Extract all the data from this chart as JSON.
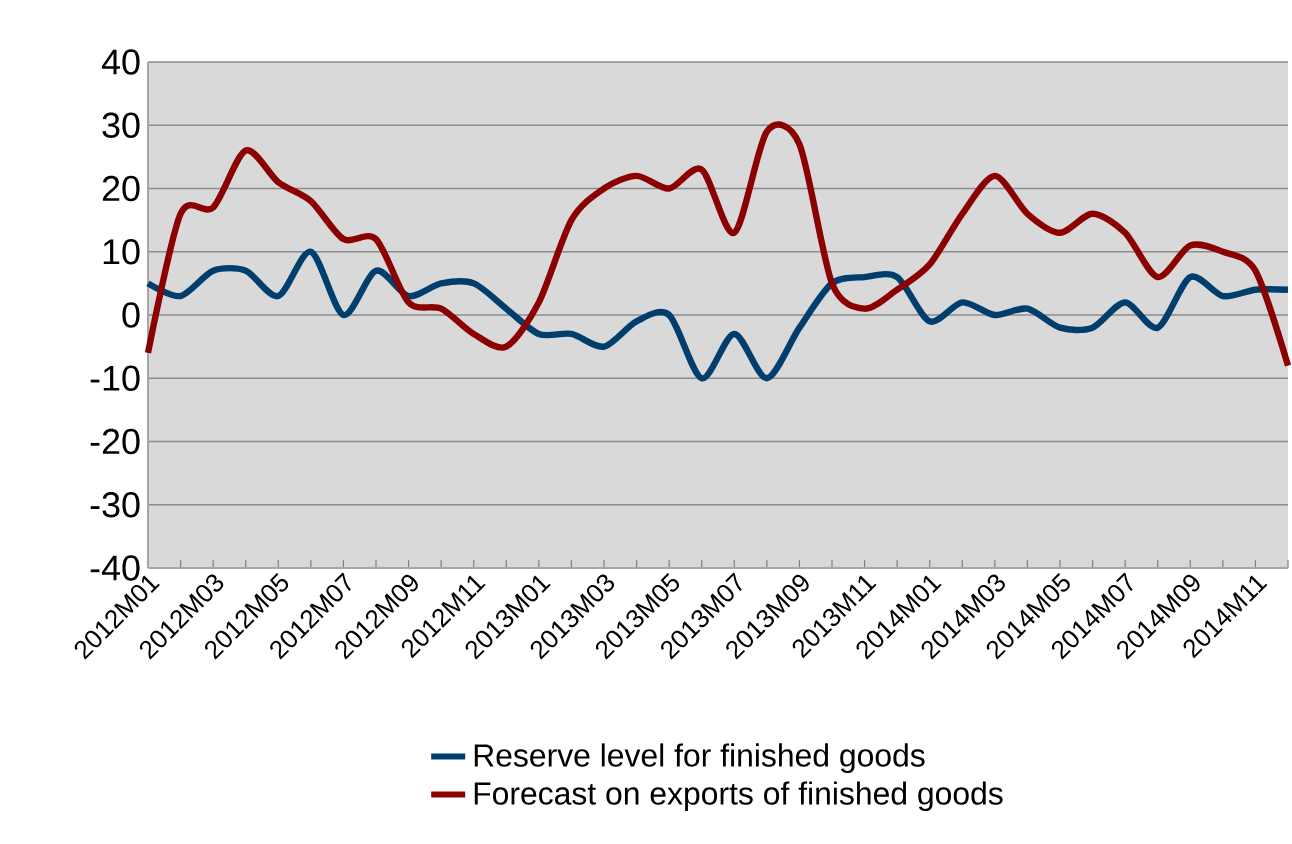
{
  "chart_data": {
    "type": "line",
    "categories": [
      "2012M01",
      null,
      "2012M03",
      null,
      "2012M05",
      null,
      "2012M07",
      null,
      "2012M09",
      null,
      "2012M11",
      null,
      "2013M01",
      null,
      "2013M03",
      null,
      "2013M05",
      null,
      "2013M07",
      null,
      "2013M09",
      null,
      "2013M11",
      null,
      "2014M01",
      null,
      "2014M03",
      null,
      "2014M05",
      null,
      "2014M07",
      null,
      "2014M09",
      null,
      "2014M11",
      null
    ],
    "series": [
      {
        "name": "Reserve level for finished goods",
        "color": "#003e6e",
        "values": [
          5,
          3,
          7,
          7,
          3,
          10,
          0,
          7,
          3,
          5,
          5,
          1,
          -3,
          -3,
          -5,
          -1,
          0,
          -10,
          -3,
          -10,
          -2,
          5,
          6,
          6,
          -1,
          2,
          0,
          1,
          -2,
          -2,
          2,
          -2,
          6,
          3,
          4,
          4
        ]
      },
      {
        "name": "Forecast on exports of finished goods",
        "color": "#8b0000",
        "values": [
          -6,
          16,
          17,
          26,
          21,
          18,
          12,
          12,
          2,
          1,
          -3,
          -5,
          2,
          15,
          20,
          22,
          20,
          23,
          13,
          29,
          27,
          5,
          1,
          4,
          8,
          16,
          22,
          16,
          13,
          16,
          13,
          6,
          11,
          10,
          7,
          -8
        ]
      }
    ],
    "ylim": [
      -40,
      40
    ],
    "yticks": [
      -40,
      -30,
      -20,
      -10,
      0,
      10,
      20,
      30,
      40
    ],
    "grid": "y",
    "legend": "bottom",
    "line_style": "solid"
  }
}
